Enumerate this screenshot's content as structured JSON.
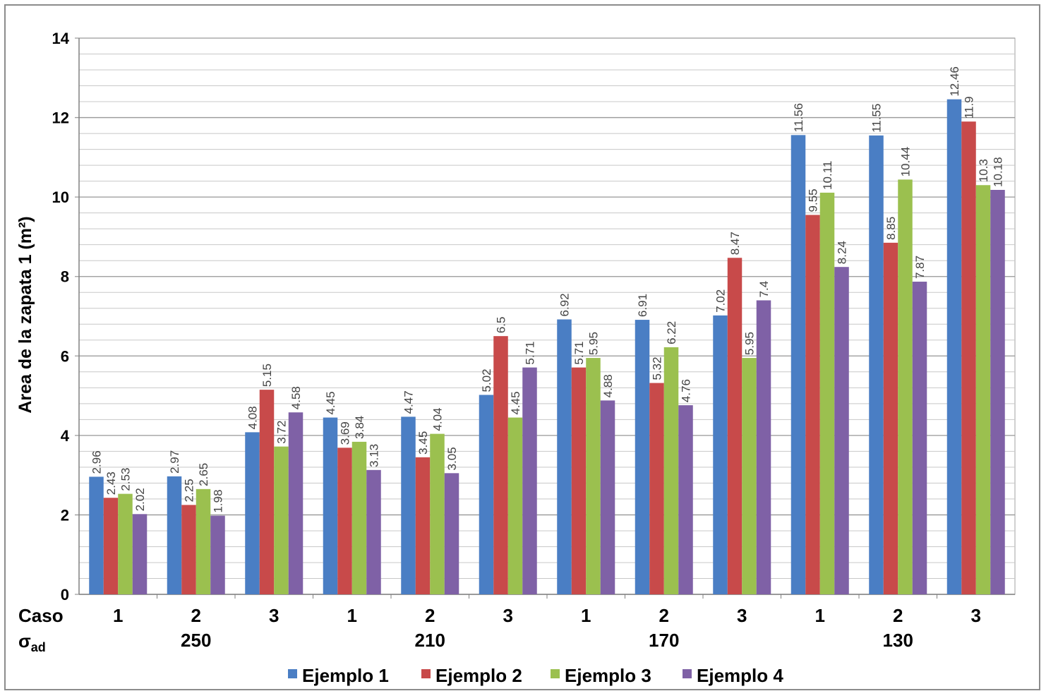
{
  "chart_data": {
    "type": "bar",
    "title": "",
    "ylabel": "Area de la zapata 1 (m²)",
    "xlabel": "",
    "ylim": [
      0,
      14
    ],
    "yticks": [
      0,
      2,
      4,
      6,
      8,
      10,
      12,
      14
    ],
    "minor_grid_step": 0.4,
    "row_labels": {
      "caso": "Caso",
      "sigma": "σ",
      "sigma_sub": "ad"
    },
    "categories": [
      "1",
      "2",
      "3",
      "1",
      "2",
      "3",
      "1",
      "2",
      "3",
      "1",
      "2",
      "3"
    ],
    "groups": [
      {
        "label": "250",
        "span": [
          0,
          2
        ]
      },
      {
        "label": "210",
        "span": [
          3,
          5
        ]
      },
      {
        "label": "170",
        "span": [
          6,
          8
        ]
      },
      {
        "label": "130",
        "span": [
          9,
          11
        ]
      }
    ],
    "series": [
      {
        "name": "Ejemplo 1",
        "color": "#4a7ec4",
        "values": [
          2.96,
          2.97,
          4.08,
          4.45,
          4.47,
          5.02,
          6.92,
          6.91,
          7.02,
          11.56,
          11.55,
          12.46
        ]
      },
      {
        "name": "Ejemplo 2",
        "color": "#c84a4a",
        "values": [
          2.43,
          2.25,
          5.15,
          3.69,
          3.45,
          6.5,
          5.71,
          5.32,
          8.47,
          9.55,
          8.85,
          11.9
        ]
      },
      {
        "name": "Ejemplo 3",
        "color": "#9bc04f",
        "values": [
          2.53,
          2.65,
          3.72,
          3.84,
          4.04,
          4.45,
          5.95,
          6.22,
          5.95,
          10.11,
          10.44,
          10.3
        ]
      },
      {
        "name": "Ejemplo 4",
        "color": "#7f61a6",
        "values": [
          2.02,
          1.98,
          4.58,
          3.13,
          3.05,
          5.71,
          4.88,
          4.76,
          7.4,
          8.24,
          7.87,
          10.18
        ]
      }
    ],
    "legend_position": "bottom"
  }
}
